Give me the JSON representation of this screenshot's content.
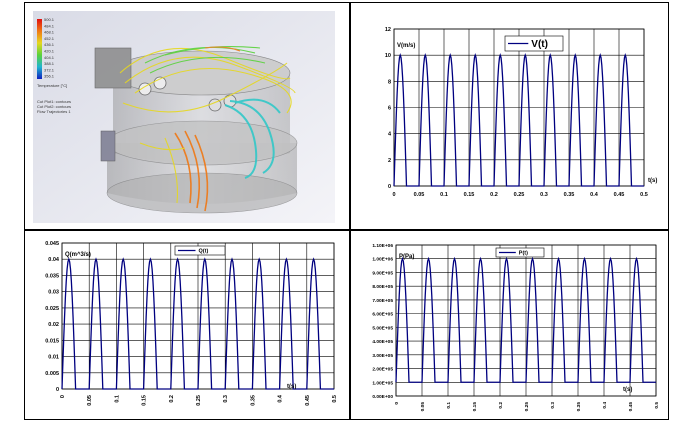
{
  "simulation": {
    "legend_values": [
      "500.1",
      "484.1",
      "468.1",
      "452.1",
      "436.1",
      "420.1",
      "404.1",
      "388.1",
      "372.1",
      "356.1"
    ],
    "legend_unit": "Temperature [°C]",
    "notes": [
      "Cut Plot1: contours",
      "Cut Plot2: contours",
      "Flow Trajectories 1"
    ],
    "colors": {
      "yellow": "#e6d820",
      "cyan": "#32c8c8",
      "green": "#5ad23c",
      "orange": "#f07814",
      "body": "#b9b9b9"
    }
  },
  "chart_data": [
    {
      "id": "velocity",
      "type": "line",
      "pulse_period": 0.05,
      "pulse_width": 0.025,
      "pulse_count": 10,
      "x_end": 0.5,
      "baseline": 0,
      "peak": 10,
      "ylim": [
        0,
        12
      ],
      "xlim": [
        0,
        0.5
      ],
      "yticks": [
        "0",
        "2",
        "4",
        "6",
        "8",
        "10",
        "12"
      ],
      "xticks": [
        "0",
        "0.05",
        "0.1",
        "0.15",
        "0.2",
        "0.25",
        "0.3",
        "0.35",
        "0.4",
        "0.45",
        "0.5"
      ],
      "ylabel": "V(m/s)",
      "xlabel": "t(s)",
      "legend": "V(t)",
      "color": "#000080"
    },
    {
      "id": "flow",
      "type": "line",
      "pulse_period": 0.05,
      "pulse_width": 0.025,
      "pulse_count": 10,
      "x_end": 0.5,
      "baseline": 0,
      "peak": 0.04,
      "ylim": [
        0,
        0.045
      ],
      "xlim": [
        0,
        0.5
      ],
      "yticks": [
        "0",
        "0.005",
        "0.01",
        "0.015",
        "0.02",
        "0.025",
        "0.03",
        "0.035",
        "0.04",
        "0.045"
      ],
      "xticks": [
        "0",
        "0.05",
        "0.1",
        "0.15",
        "0.2",
        "0.25",
        "0.3",
        "0.35",
        "0.4",
        "0.45",
        "0.5"
      ],
      "ylabel": "Q(m^3/s)",
      "xlabel": "t(s)",
      "legend": "Q(t)",
      "color": "#000080"
    },
    {
      "id": "pressure",
      "type": "line",
      "pulse_period": 0.05,
      "pulse_width": 0.025,
      "pulse_count": 10,
      "x_end": 0.5,
      "baseline": 100000,
      "peak": 1000000,
      "ylim": [
        0,
        1100000
      ],
      "xlim": [
        0,
        0.5
      ],
      "yticks": [
        "0.00E+00",
        "1.00E+05",
        "2.00E+05",
        "3.00E+05",
        "4.00E+05",
        "5.00E+05",
        "6.00E+05",
        "7.00E+05",
        "8.00E+05",
        "9.00E+05",
        "1.00E+06",
        "1.10E+06"
      ],
      "xticks": [
        "0",
        "0.05",
        "0.1",
        "0.15",
        "0.2",
        "0.25",
        "0.3",
        "0.35",
        "0.4",
        "0.45",
        "0.5"
      ],
      "ylabel": "P(Pa)",
      "xlabel": "t(s)",
      "legend": "P(t)",
      "color": "#000080"
    }
  ]
}
